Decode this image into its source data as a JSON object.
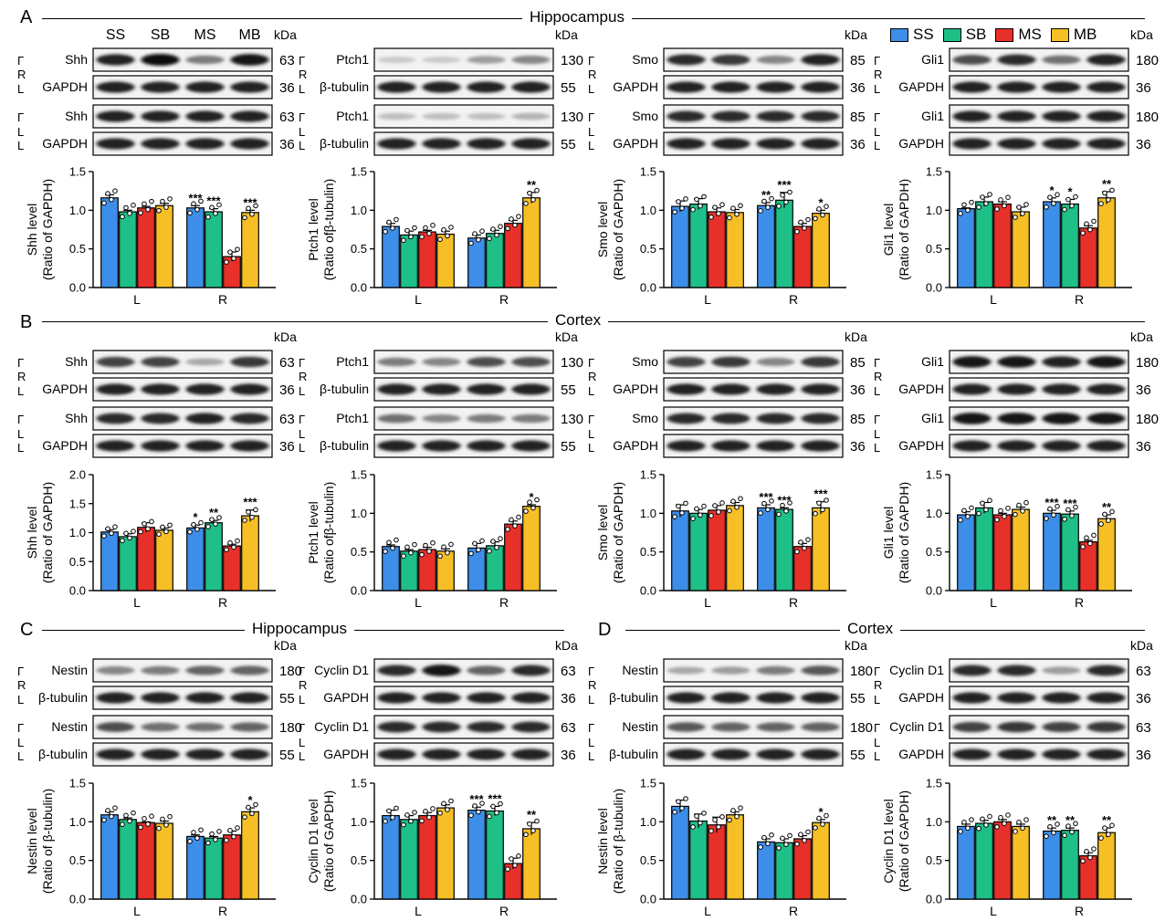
{
  "figure": {
    "panels": {
      "A": "A",
      "B": "B",
      "C": "C",
      "D": "D"
    },
    "titles": {
      "A": "Hippocampus",
      "B": "Cortex",
      "C": "Hippocampus",
      "D": "Cortex"
    }
  },
  "legend": [
    {
      "label": "SS",
      "color": "#3d8ee8"
    },
    {
      "label": "SB",
      "color": "#1fbf88"
    },
    {
      "label": "MS",
      "color": "#e8302a"
    },
    {
      "label": "MB",
      "color": "#f6bf26"
    }
  ],
  "lane_labels": [
    "SS",
    "SB",
    "MS",
    "MB"
  ],
  "kda_label": "kDa",
  "side_labels": {
    "right": "R",
    "left": "L"
  },
  "blots": [
    {
      "protein": "Shh",
      "protein_kda": "63",
      "loading": "GAPDH",
      "loading_kda": "36",
      "show_lanes": true,
      "r_int": [
        0.9,
        1.0,
        0.5,
        0.95
      ],
      "l_int": [
        0.9,
        0.9,
        0.9,
        0.9
      ]
    },
    {
      "protein": "Ptch1",
      "protein_kda": "130",
      "loading": "β-tubulin",
      "loading_kda": "55",
      "r_int": [
        0.15,
        0.15,
        0.35,
        0.45
      ],
      "l_int": [
        0.2,
        0.2,
        0.2,
        0.25
      ]
    },
    {
      "protein": "Smo",
      "protein_kda": "85",
      "loading": "GAPDH",
      "loading_kda": "36",
      "r_int": [
        0.85,
        0.8,
        0.45,
        0.9
      ],
      "l_int": [
        0.85,
        0.85,
        0.85,
        0.85
      ]
    },
    {
      "protein": "Gli1",
      "protein_kda": "180",
      "loading": "GAPDH",
      "loading_kda": "36",
      "r_int": [
        0.7,
        0.85,
        0.55,
        0.9
      ],
      "l_int": [
        0.9,
        0.9,
        0.9,
        0.9
      ]
    },
    {
      "protein": "Shh",
      "protein_kda": "63",
      "loading": "GAPDH",
      "loading_kda": "36",
      "r_int": [
        0.75,
        0.75,
        0.3,
        0.8
      ],
      "l_int": [
        0.85,
        0.85,
        0.9,
        0.85
      ]
    },
    {
      "protein": "Ptch1",
      "protein_kda": "130",
      "loading": "β-tubulin",
      "loading_kda": "55",
      "r_int": [
        0.5,
        0.45,
        0.7,
        0.7
      ],
      "l_int": [
        0.55,
        0.45,
        0.5,
        0.5
      ]
    },
    {
      "protein": "Smo",
      "protein_kda": "85",
      "loading": "GAPDH",
      "loading_kda": "36",
      "r_int": [
        0.75,
        0.8,
        0.45,
        0.8
      ],
      "l_int": [
        0.85,
        0.85,
        0.85,
        0.85
      ]
    },
    {
      "protein": "Gli1",
      "protein_kda": "180",
      "loading": "GAPDH",
      "loading_kda": "36",
      "r_int": [
        0.95,
        0.95,
        0.9,
        0.95
      ],
      "l_int": [
        0.95,
        0.95,
        0.95,
        0.95
      ]
    },
    {
      "protein": "Nestin",
      "protein_kda": "180",
      "loading": "β-tubulin",
      "loading_kda": "55",
      "r_int": [
        0.45,
        0.5,
        0.6,
        0.6
      ],
      "l_int": [
        0.7,
        0.55,
        0.55,
        0.6
      ]
    },
    {
      "protein": "Cyclin D1",
      "protein_kda": "63",
      "loading": "GAPDH",
      "loading_kda": "36",
      "r_int": [
        0.85,
        0.95,
        0.6,
        0.85
      ],
      "l_int": [
        0.85,
        0.85,
        0.85,
        0.85
      ]
    },
    {
      "protein": "Nestin",
      "protein_kda": "180",
      "loading": "β-tubulin",
      "loading_kda": "55",
      "r_int": [
        0.3,
        0.35,
        0.5,
        0.65
      ],
      "l_int": [
        0.65,
        0.6,
        0.6,
        0.6
      ]
    },
    {
      "protein": "Cyclin D1",
      "protein_kda": "63",
      "loading": "GAPDH",
      "loading_kda": "36",
      "r_int": [
        0.85,
        0.85,
        0.35,
        0.85
      ],
      "l_int": [
        0.75,
        0.8,
        0.75,
        0.8
      ]
    }
  ],
  "chart_data": [
    {
      "type": "bar",
      "ylabel": "Shh level",
      "ylabel2": "(Ratio of GAPDH)",
      "ylim": [
        0,
        1.5
      ],
      "yticks": [
        "0.0",
        "0.5",
        "1.0",
        "1.5"
      ],
      "categories": [
        "L",
        "R"
      ],
      "series": [
        {
          "name": "SS",
          "values": [
            1.16,
            1.03
          ],
          "sem": [
            0.04,
            0.03
          ],
          "sig": [
            "",
            "***"
          ]
        },
        {
          "name": "SB",
          "values": [
            0.98,
            0.98
          ],
          "sem": [
            0.02,
            0.04
          ],
          "sig": [
            "",
            "***"
          ]
        },
        {
          "name": "MS",
          "values": [
            1.03,
            0.4
          ],
          "sem": [
            0.02,
            0.06
          ],
          "sig": [
            "",
            ""
          ]
        },
        {
          "name": "MB",
          "values": [
            1.06,
            0.97
          ],
          "sem": [
            0.03,
            0.03
          ],
          "sig": [
            "",
            "***"
          ]
        }
      ]
    },
    {
      "type": "bar",
      "ylabel": "Ptch1 level",
      "ylabel2": "(Ratio ofβ-tubulin)",
      "ylim": [
        0,
        1.5
      ],
      "yticks": [
        "0.0",
        "0.5",
        "1.0",
        "1.5"
      ],
      "categories": [
        "L",
        "R"
      ],
      "series": [
        {
          "name": "SS",
          "values": [
            0.79,
            0.64
          ],
          "sem": [
            0.04,
            0.04
          ],
          "sig": [
            "",
            ""
          ]
        },
        {
          "name": "SB",
          "values": [
            0.68,
            0.7
          ],
          "sem": [
            0.05,
            0.04
          ],
          "sig": [
            "",
            ""
          ]
        },
        {
          "name": "MS",
          "values": [
            0.72,
            0.83
          ],
          "sem": [
            0.02,
            0.04
          ],
          "sig": [
            "",
            ""
          ]
        },
        {
          "name": "MB",
          "values": [
            0.69,
            1.16
          ],
          "sem": [
            0.04,
            0.07
          ],
          "sig": [
            "",
            "**"
          ]
        }
      ]
    },
    {
      "type": "bar",
      "ylabel": "Smo level",
      "ylabel2": "(Ratio of GAPDH)",
      "ylim": [
        0,
        1.5
      ],
      "yticks": [
        "0.0",
        "0.5",
        "1.0",
        "1.5"
      ],
      "categories": [
        "L",
        "R"
      ],
      "series": [
        {
          "name": "SS",
          "values": [
            1.05,
            1.06
          ],
          "sem": [
            0.07,
            0.04
          ],
          "sig": [
            "",
            "**"
          ]
        },
        {
          "name": "SB",
          "values": [
            1.08,
            1.13
          ],
          "sem": [
            0.07,
            0.1
          ],
          "sig": [
            "",
            "***"
          ]
        },
        {
          "name": "MS",
          "values": [
            0.98,
            0.79
          ],
          "sem": [
            0.05,
            0.04
          ],
          "sig": [
            "",
            ""
          ]
        },
        {
          "name": "MB",
          "values": [
            0.97,
            0.96
          ],
          "sem": [
            0.04,
            0.04
          ],
          "sig": [
            "",
            "*"
          ]
        }
      ]
    },
    {
      "type": "bar",
      "ylabel": "Gli1 level",
      "ylabel2": "(Ratio of GAPDH)",
      "ylim": [
        0,
        1.5
      ],
      "yticks": [
        "0.0",
        "0.5",
        "1.0",
        "1.5"
      ],
      "categories": [
        "L",
        "R"
      ],
      "series": [
        {
          "name": "SS",
          "values": [
            1.02,
            1.11
          ],
          "sem": [
            0.01,
            0.05
          ],
          "sig": [
            "",
            "*"
          ]
        },
        {
          "name": "SB",
          "values": [
            1.11,
            1.08
          ],
          "sem": [
            0.06,
            0.06
          ],
          "sig": [
            "",
            "*"
          ]
        },
        {
          "name": "MS",
          "values": [
            1.08,
            0.77
          ],
          "sem": [
            0.03,
            0.03
          ],
          "sig": [
            "",
            ""
          ]
        },
        {
          "name": "MB",
          "values": [
            0.98,
            1.16
          ],
          "sem": [
            0.06,
            0.08
          ],
          "sig": [
            "",
            "**"
          ]
        }
      ]
    },
    {
      "type": "bar",
      "ylabel": "Shh level",
      "ylabel2": "(Ratio of GAPDH)",
      "ylim": [
        0,
        2.0
      ],
      "yticks": [
        "0.0",
        "0.5",
        "1.0",
        "1.5",
        "2.0"
      ],
      "categories": [
        "L",
        "R"
      ],
      "series": [
        {
          "name": "SS",
          "values": [
            1.01,
            1.08
          ],
          "sem": [
            0.04,
            0.05
          ],
          "sig": [
            "",
            "*"
          ]
        },
        {
          "name": "SB",
          "values": [
            0.93,
            1.17
          ],
          "sem": [
            0.05,
            0.04
          ],
          "sig": [
            "",
            "**"
          ]
        },
        {
          "name": "MS",
          "values": [
            1.09,
            0.77
          ],
          "sem": [
            0.08,
            0.03
          ],
          "sig": [
            "",
            ""
          ]
        },
        {
          "name": "MB",
          "values": [
            1.04,
            1.29
          ],
          "sem": [
            0.04,
            0.1
          ],
          "sig": [
            "",
            "***"
          ]
        }
      ]
    },
    {
      "type": "bar",
      "ylabel": "Ptch1 level",
      "ylabel2": "(Ratio ofβ-tubulin)",
      "ylim": [
        0,
        1.5
      ],
      "yticks": [
        "0.0",
        "0.5",
        "1.0",
        "1.5"
      ],
      "categories": [
        "L",
        "R"
      ],
      "series": [
        {
          "name": "SS",
          "values": [
            0.57,
            0.55
          ],
          "sem": [
            0.02,
            0.06
          ],
          "sig": [
            "",
            ""
          ]
        },
        {
          "name": "SB",
          "values": [
            0.51,
            0.58
          ],
          "sem": [
            0.02,
            0.05
          ],
          "sig": [
            "",
            ""
          ]
        },
        {
          "name": "MS",
          "values": [
            0.53,
            0.86
          ],
          "sem": [
            0.03,
            0.04
          ],
          "sig": [
            "",
            ""
          ]
        },
        {
          "name": "MB",
          "values": [
            0.51,
            1.09
          ],
          "sem": [
            0.03,
            0.02
          ],
          "sig": [
            "",
            "*"
          ]
        }
      ]
    },
    {
      "type": "bar",
      "ylabel": "Smo level",
      "ylabel2": "(Ratio of GAPDH)",
      "ylim": [
        0,
        1.5
      ],
      "yticks": [
        "0.0",
        "0.5",
        "1.0",
        "1.5"
      ],
      "categories": [
        "L",
        "R"
      ],
      "series": [
        {
          "name": "SS",
          "values": [
            1.03,
            1.07
          ],
          "sem": [
            0.08,
            0.04
          ],
          "sig": [
            "",
            "***"
          ]
        },
        {
          "name": "SB",
          "values": [
            1.0,
            1.05
          ],
          "sem": [
            0.05,
            0.02
          ],
          "sig": [
            "",
            "***"
          ]
        },
        {
          "name": "MS",
          "values": [
            1.04,
            0.57
          ],
          "sem": [
            0.06,
            0.04
          ],
          "sig": [
            "",
            ""
          ]
        },
        {
          "name": "MB",
          "values": [
            1.1,
            1.07
          ],
          "sem": [
            0.04,
            0.08
          ],
          "sig": [
            "",
            "***"
          ]
        }
      ]
    },
    {
      "type": "bar",
      "ylabel": "Gli1 level",
      "ylabel2": "(Ratio of GAPDH)",
      "ylim": [
        0,
        1.5
      ],
      "yticks": [
        "0.0",
        "0.5",
        "1.0",
        "1.5"
      ],
      "categories": [
        "L",
        "R"
      ],
      "series": [
        {
          "name": "SS",
          "values": [
            0.98,
            1.0
          ],
          "sem": [
            0.04,
            0.04
          ],
          "sig": [
            "",
            "***"
          ]
        },
        {
          "name": "SB",
          "values": [
            1.07,
            0.99
          ],
          "sem": [
            0.07,
            0.04
          ],
          "sig": [
            "",
            "***"
          ]
        },
        {
          "name": "MS",
          "values": [
            0.98,
            0.63
          ],
          "sem": [
            0.02,
            0.02
          ],
          "sig": [
            "",
            ""
          ]
        },
        {
          "name": "MB",
          "values": [
            1.05,
            0.93
          ],
          "sem": [
            0.03,
            0.05
          ],
          "sig": [
            "",
            "**"
          ]
        }
      ]
    },
    {
      "type": "bar",
      "ylabel": "Nestin level",
      "ylabel2": "(Ratio of β-tubulin)",
      "ylim": [
        0,
        1.5
      ],
      "yticks": [
        "0.0",
        "0.5",
        "1.0",
        "1.5"
      ],
      "categories": [
        "L",
        "R"
      ],
      "series": [
        {
          "name": "SS",
          "values": [
            1.09,
            0.81
          ],
          "sem": [
            0.04,
            0.02
          ],
          "sig": [
            "",
            ""
          ]
        },
        {
          "name": "SB",
          "values": [
            1.03,
            0.79
          ],
          "sem": [
            0.02,
            0.02
          ],
          "sig": [
            "",
            ""
          ]
        },
        {
          "name": "MS",
          "values": [
            0.99,
            0.83
          ],
          "sem": [
            0.01,
            0.05
          ],
          "sig": [
            "",
            ""
          ]
        },
        {
          "name": "MB",
          "values": [
            0.98,
            1.13
          ],
          "sem": [
            0.03,
            0.05
          ],
          "sig": [
            "",
            "*"
          ]
        }
      ]
    },
    {
      "type": "bar",
      "ylabel": "Cyclin D1 level",
      "ylabel2": "(Ratio of GAPDH)",
      "ylim": [
        0,
        1.5
      ],
      "yticks": [
        "0.0",
        "0.5",
        "1.0",
        "1.5"
      ],
      "categories": [
        "L",
        "R"
      ],
      "series": [
        {
          "name": "SS",
          "values": [
            1.08,
            1.15
          ],
          "sem": [
            0.07,
            0.04
          ],
          "sig": [
            "",
            "***"
          ]
        },
        {
          "name": "SB",
          "values": [
            1.03,
            1.14
          ],
          "sem": [
            0.05,
            0.06
          ],
          "sig": [
            "",
            "***"
          ]
        },
        {
          "name": "MS",
          "values": [
            1.08,
            0.46
          ],
          "sem": [
            0.04,
            0.07
          ],
          "sig": [
            "",
            ""
          ]
        },
        {
          "name": "MB",
          "values": [
            1.18,
            0.91
          ],
          "sem": [
            0.04,
            0.08
          ],
          "sig": [
            "",
            "**"
          ]
        }
      ]
    },
    {
      "type": "bar",
      "ylabel": "Nestin level",
      "ylabel2": "(Ratio of β-tubulin)",
      "ylim": [
        0,
        1.5
      ],
      "yticks": [
        "0.0",
        "0.5",
        "1.0",
        "1.5"
      ],
      "categories": [
        "L",
        "R"
      ],
      "series": [
        {
          "name": "SS",
          "values": [
            1.2,
            0.74
          ],
          "sem": [
            0.08,
            0.04
          ],
          "sig": [
            "",
            ""
          ]
        },
        {
          "name": "SB",
          "values": [
            1.01,
            0.73
          ],
          "sem": [
            0.09,
            0.05
          ],
          "sig": [
            "",
            ""
          ]
        },
        {
          "name": "MS",
          "values": [
            0.96,
            0.78
          ],
          "sem": [
            0.1,
            0.04
          ],
          "sig": [
            "",
            ""
          ]
        },
        {
          "name": "MB",
          "values": [
            1.09,
            0.99
          ],
          "sem": [
            0.04,
            0.04
          ],
          "sig": [
            "",
            "*"
          ]
        }
      ]
    },
    {
      "type": "bar",
      "ylabel": "Cyclin D1 level",
      "ylabel2": "(Ratio of GAPDH)",
      "ylim": [
        0,
        1.5
      ],
      "yticks": [
        "0.0",
        "0.5",
        "1.0",
        "1.5"
      ],
      "categories": [
        "L",
        "R"
      ],
      "series": [
        {
          "name": "SS",
          "values": [
            0.94,
            0.88
          ],
          "sem": [
            0.03,
            0.04
          ],
          "sig": [
            "",
            "**"
          ]
        },
        {
          "name": "SB",
          "values": [
            0.98,
            0.89
          ],
          "sem": [
            0.04,
            0.03
          ],
          "sig": [
            "",
            "**"
          ]
        },
        {
          "name": "MS",
          "values": [
            1.0,
            0.56
          ],
          "sem": [
            0.03,
            0.04
          ],
          "sig": [
            "",
            ""
          ]
        },
        {
          "name": "MB",
          "values": [
            0.94,
            0.86
          ],
          "sem": [
            0.03,
            0.06
          ],
          "sig": [
            "",
            "**"
          ]
        }
      ]
    }
  ]
}
